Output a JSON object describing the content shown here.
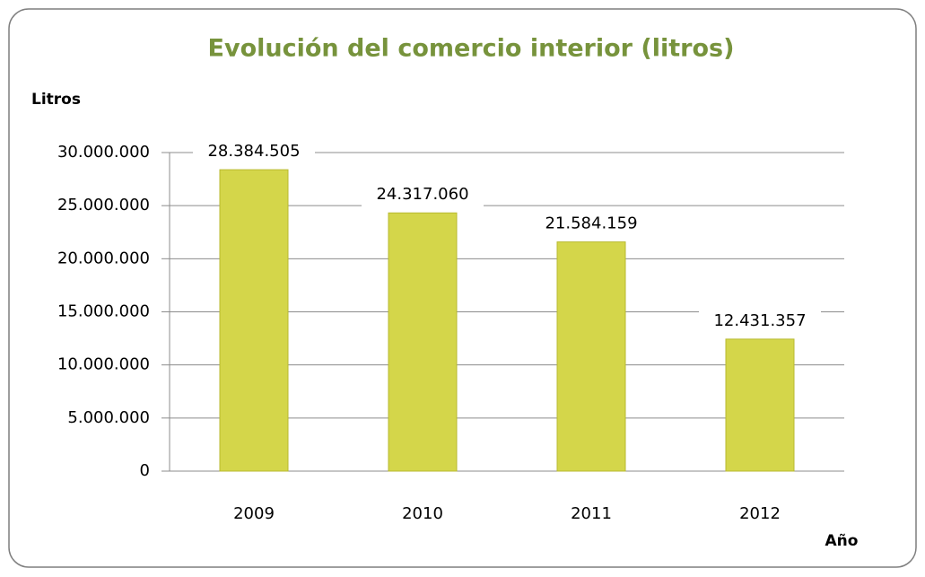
{
  "chart_data": {
    "type": "bar",
    "title": "Evolución del comercio interior (litros)",
    "y_label": "Litros",
    "x_label": "Año",
    "categories": [
      "2009",
      "2010",
      "2011",
      "2012"
    ],
    "values": [
      28384505,
      24317060,
      21584159,
      12431357
    ],
    "value_labels": [
      "28.384.505",
      "24.317.060",
      "21.584.159",
      "12.431.357"
    ],
    "color": "#d4d64a",
    "ylim": [
      0,
      30000000
    ],
    "yticks": [
      0,
      {
        "value": 5000000,
        "label": "5.000.000"
      },
      {
        "value": 10000000,
        "label": "10.000.000"
      },
      {
        "value": 15000000,
        "label": "15.000.000"
      },
      {
        "value": 20000000,
        "label": "20.000.000"
      },
      {
        "value": 25000000,
        "label": "25.000.000"
      },
      {
        "value": 30000000,
        "label": "30.000.000"
      }
    ],
    "grid": true
  }
}
